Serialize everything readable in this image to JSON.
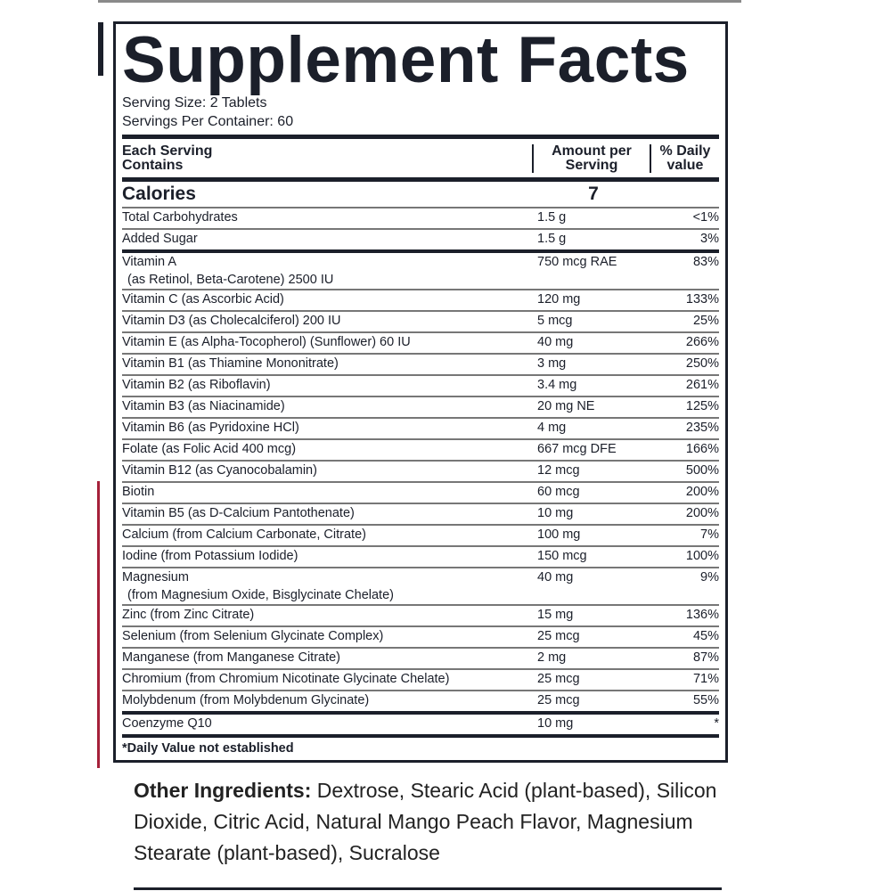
{
  "title": "Supplement Facts",
  "serving_size": "Serving Size: 2 Tablets",
  "servings_per_container": "Servings Per Container: 60",
  "header": {
    "col1_line1": "Each Serving",
    "col1_line2": "Contains",
    "col2_line1": "Amount per",
    "col2_line2": "Serving",
    "col3_line1": "% Daily",
    "col3_line2": "value"
  },
  "calories": {
    "label": "Calories",
    "amount": "7"
  },
  "rows": [
    {
      "name": "Total Carbohydrates",
      "sub": "",
      "amount": "1.5 g",
      "dv": "<1%"
    },
    {
      "name": "Added Sugar",
      "sub": "",
      "amount": "1.5 g",
      "dv": "3%"
    },
    {
      "name": "Vitamin A",
      "sub": "(as Retinol, Beta-Carotene) 2500 IU",
      "amount": "750 mcg RAE",
      "dv": "83%"
    },
    {
      "name": "Vitamin C (as Ascorbic Acid)",
      "sub": "",
      "amount": "120 mg",
      "dv": "133%"
    },
    {
      "name": "Vitamin D3 (as Cholecalciferol) 200 IU",
      "sub": "",
      "amount": "5 mcg",
      "dv": "25%"
    },
    {
      "name": "Vitamin E (as Alpha-Tocopherol) (Sunflower) 60 IU",
      "sub": "",
      "amount": "40 mg",
      "dv": "266%"
    },
    {
      "name": "Vitamin B1 (as Thiamine Mononitrate)",
      "sub": "",
      "amount": "3 mg",
      "dv": "250%"
    },
    {
      "name": "Vitamin B2 (as Riboflavin)",
      "sub": "",
      "amount": "3.4 mg",
      "dv": "261%"
    },
    {
      "name": "Vitamin B3 (as Niacinamide)",
      "sub": "",
      "amount": "20 mg NE",
      "dv": "125%"
    },
    {
      "name": "Vitamin B6 (as Pyridoxine HCl)",
      "sub": "",
      "amount": "4 mg",
      "dv": "235%"
    },
    {
      "name": "Folate (as Folic Acid 400 mcg)",
      "sub": "",
      "amount": "667 mcg DFE",
      "dv": "166%"
    },
    {
      "name": "Vitamin B12 (as Cyanocobalamin)",
      "sub": "",
      "amount": "12 mcg",
      "dv": "500%"
    },
    {
      "name": "Biotin",
      "sub": "",
      "amount": "60 mcg",
      "dv": "200%"
    },
    {
      "name": "Vitamin B5 (as D-Calcium Pantothenate)",
      "sub": "",
      "amount": "10 mg",
      "dv": "200%"
    },
    {
      "name": "Calcium (from Calcium Carbonate, Citrate)",
      "sub": "",
      "amount": "100 mg",
      "dv": "7%"
    },
    {
      "name": "Iodine (from Potassium Iodide)",
      "sub": "",
      "amount": "150 mcg",
      "dv": "100%"
    },
    {
      "name": "Magnesium",
      "sub": "(from Magnesium Oxide, Bisglycinate Chelate)",
      "amount": "40 mg",
      "dv": "9%"
    },
    {
      "name": "Zinc (from Zinc Citrate)",
      "sub": "",
      "amount": "15 mg",
      "dv": "136%"
    },
    {
      "name": "Selenium (from Selenium Glycinate Complex)",
      "sub": "",
      "amount": "25 mcg",
      "dv": "45%"
    },
    {
      "name": "Manganese (from Manganese Citrate)",
      "sub": "",
      "amount": "2 mg",
      "dv": "87%"
    },
    {
      "name": "Chromium (from Chromium Nicotinate Glycinate Chelate)",
      "sub": "",
      "amount": "25 mcg",
      "dv": "71%"
    },
    {
      "name": "Molybdenum (from Molybdenum Glycinate)",
      "sub": "",
      "amount": "25 mcg",
      "dv": "55%"
    },
    {
      "name": "Coenzyme Q10",
      "sub": "",
      "amount": "10 mg",
      "dv": "*"
    }
  ],
  "footnote": "*Daily Value not established",
  "other_ingredients": {
    "label": "Other Ingredients:",
    "text": " Dextrose, Stearic Acid (plant-based), Silicon Dioxide, Citric Acid, Natural Mango Peach Flavor, Magnesium Stearate (plant-based), Sucralose"
  },
  "colors": {
    "ink": "#1b1f2a",
    "accent": "#a5213a"
  }
}
